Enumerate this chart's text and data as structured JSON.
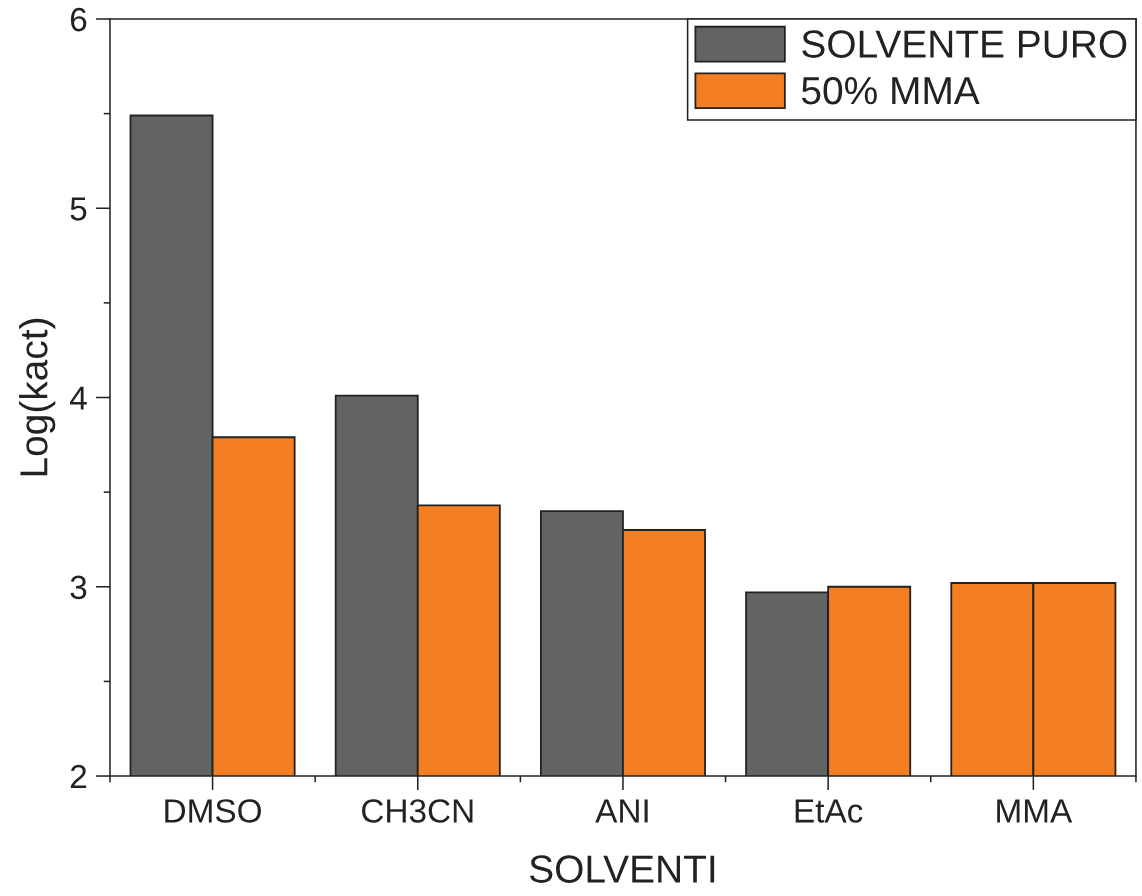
{
  "chart_data": {
    "type": "bar",
    "xlabel": "SOLVENTI",
    "ylabel": "Log(kact)",
    "categories": [
      "DMSO",
      "CH3CN",
      "ANI",
      "EtAc",
      "MMA"
    ],
    "series": [
      {
        "name": "SOLVENTE PURO",
        "color": "#626463",
        "colors": [
          "#626463",
          "#626463",
          "#626463",
          "#626463",
          "#f47f22"
        ],
        "values": [
          5.49,
          4.01,
          3.4,
          2.97,
          3.02
        ]
      },
      {
        "name": "50% MMA",
        "color": "#f47f22",
        "values": [
          3.79,
          3.43,
          3.3,
          3.0,
          3.02
        ]
      }
    ],
    "ylim": [
      2,
      6
    ],
    "yticks": [
      2,
      {
        "value": 2.5,
        "label": null
      },
      3,
      {
        "value": 3.5,
        "label": null
      },
      4,
      {
        "value": 4.5,
        "label": null
      },
      5,
      {
        "value": 5.5,
        "label": null
      },
      6
    ],
    "legend": "top right"
  }
}
